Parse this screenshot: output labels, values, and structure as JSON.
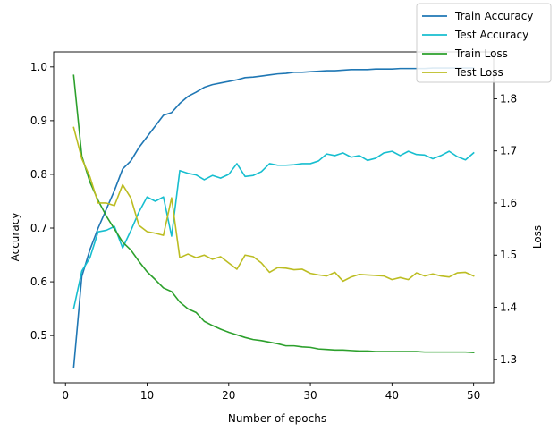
{
  "chart_data": {
    "type": "line",
    "title": "",
    "xlabel": "Number of epochs",
    "ylabel_left": "Accuracy",
    "ylabel_right": "Loss",
    "xlim": [
      -1.45,
      52.45
    ],
    "ylim_left": [
      0.412,
      1.028
    ],
    "ylim_right": [
      1.255,
      1.89
    ],
    "xticks": [
      0,
      10,
      20,
      30,
      40,
      50
    ],
    "yticks_left": [
      0.5,
      0.6,
      0.7,
      0.8,
      0.9,
      1.0
    ],
    "ytick_labels_left": [
      "0.5",
      "0.6",
      "0.7",
      "0.8",
      "0.9",
      "1.0"
    ],
    "yticks_right": [
      1.3,
      1.4,
      1.5,
      1.6,
      1.7,
      1.8
    ],
    "ytick_labels_right": [
      "1.3",
      "1.4",
      "1.5",
      "1.6",
      "1.7",
      "1.8"
    ],
    "grid": false,
    "legend_position": "top-right",
    "x": [
      1,
      2,
      3,
      4,
      5,
      6,
      7,
      8,
      9,
      10,
      11,
      12,
      13,
      14,
      15,
      16,
      17,
      18,
      19,
      20,
      21,
      22,
      23,
      24,
      25,
      26,
      27,
      28,
      29,
      30,
      31,
      32,
      33,
      34,
      35,
      36,
      37,
      38,
      39,
      40,
      41,
      42,
      43,
      44,
      45,
      46,
      47,
      48,
      49,
      50
    ],
    "series": [
      {
        "name": "Train Accuracy",
        "axis": "left",
        "color": "#1f77b4",
        "values": [
          0.44,
          0.61,
          0.66,
          0.7,
          0.735,
          0.77,
          0.81,
          0.825,
          0.85,
          0.87,
          0.89,
          0.91,
          0.915,
          0.932,
          0.945,
          0.953,
          0.962,
          0.967,
          0.97,
          0.973,
          0.976,
          0.98,
          0.981,
          0.983,
          0.985,
          0.987,
          0.988,
          0.99,
          0.99,
          0.991,
          0.992,
          0.993,
          0.993,
          0.994,
          0.995,
          0.995,
          0.995,
          0.996,
          0.996,
          0.996,
          0.997,
          0.997,
          0.997,
          0.997,
          0.998,
          0.998,
          0.998,
          0.998,
          0.998,
          0.998
        ]
      },
      {
        "name": "Test Accuracy",
        "axis": "left",
        "color": "#17becf",
        "values": [
          0.55,
          0.62,
          0.645,
          0.693,
          0.696,
          0.703,
          0.663,
          0.695,
          0.73,
          0.758,
          0.75,
          0.758,
          0.685,
          0.807,
          0.802,
          0.799,
          0.79,
          0.798,
          0.793,
          0.8,
          0.82,
          0.796,
          0.798,
          0.805,
          0.82,
          0.817,
          0.817,
          0.818,
          0.82,
          0.82,
          0.825,
          0.838,
          0.835,
          0.84,
          0.832,
          0.835,
          0.826,
          0.83,
          0.84,
          0.843,
          0.835,
          0.843,
          0.837,
          0.836,
          0.829,
          0.835,
          0.843,
          0.833,
          0.827,
          0.84
        ]
      },
      {
        "name": "Train Loss",
        "axis": "right",
        "color": "#2ca02c",
        "values": [
          1.845,
          1.69,
          1.64,
          1.605,
          1.575,
          1.55,
          1.525,
          1.51,
          1.488,
          1.468,
          1.453,
          1.437,
          1.43,
          1.41,
          1.397,
          1.39,
          1.373,
          1.365,
          1.358,
          1.352,
          1.347,
          1.342,
          1.338,
          1.336,
          1.333,
          1.33,
          1.326,
          1.326,
          1.324,
          1.323,
          1.32,
          1.319,
          1.318,
          1.318,
          1.317,
          1.316,
          1.316,
          1.315,
          1.315,
          1.315,
          1.315,
          1.315,
          1.315,
          1.314,
          1.314,
          1.314,
          1.314,
          1.314,
          1.314,
          1.313
        ]
      },
      {
        "name": "Test Loss",
        "axis": "right",
        "color": "#bcbd22",
        "values": [
          1.745,
          1.685,
          1.65,
          1.6,
          1.6,
          1.595,
          1.635,
          1.61,
          1.557,
          1.545,
          1.542,
          1.538,
          1.61,
          1.495,
          1.502,
          1.495,
          1.5,
          1.492,
          1.497,
          1.485,
          1.473,
          1.5,
          1.497,
          1.485,
          1.467,
          1.476,
          1.475,
          1.472,
          1.473,
          1.465,
          1.462,
          1.46,
          1.467,
          1.45,
          1.458,
          1.463,
          1.462,
          1.461,
          1.46,
          1.453,
          1.457,
          1.453,
          1.466,
          1.46,
          1.464,
          1.46,
          1.458,
          1.466,
          1.467,
          1.46
        ]
      }
    ]
  }
}
